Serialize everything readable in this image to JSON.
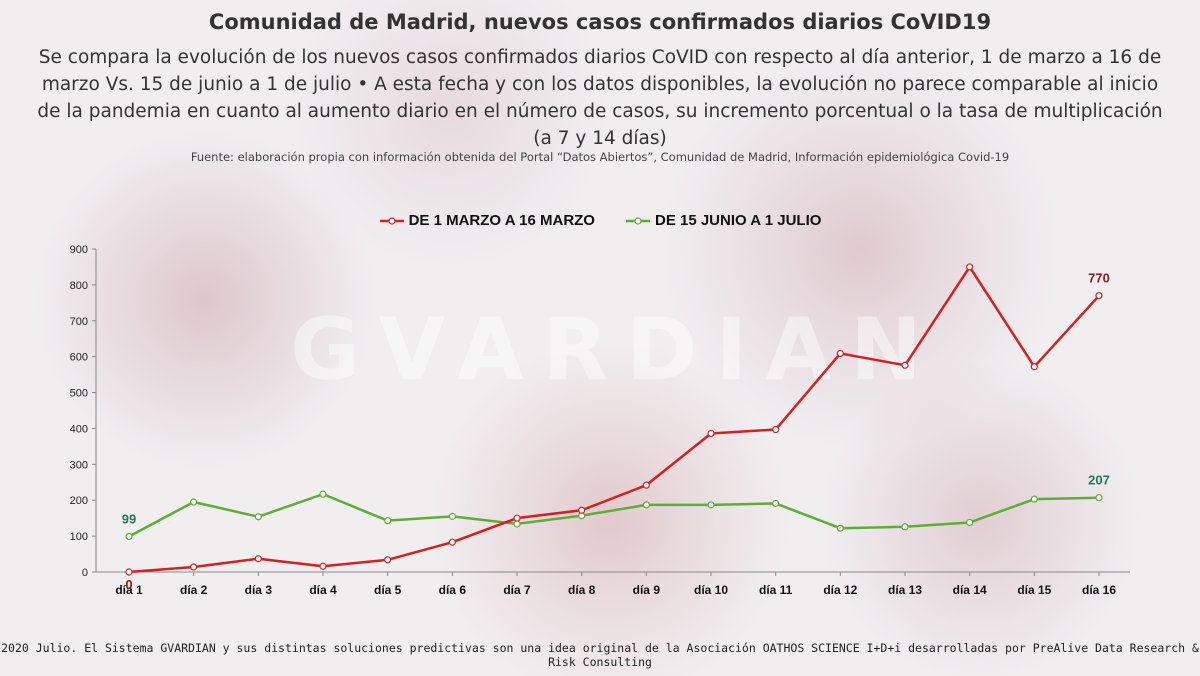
{
  "title": "Comunidad de Madrid, nuevos casos confirmados diarios CoVID19",
  "subtitle": "Se compara la evolución de los nuevos casos confirmados diarios CoVID con respecto al día anterior, 1 de marzo a 16 de marzo Vs. 15 de junio a 1 de julio • A esta fecha y con los datos disponibles, la evolución no parece comparable al inicio de la pandemia en cuanto al aumento diario en el número de casos, su incremento porcentual o la tasa de multiplicación (a 7 y 14 días)",
  "source": "Fuente: elaboración propia con información obtenida del Portal “Datos Abiertos”, Comunidad de Madrid, Información epidemiológica Covid-19",
  "watermark": "GVARDIAN",
  "footer": "2020 Julio. El Sistema GVARDIAN y sus distintas soluciones predictivas son una idea original de la Asociación OATHOS SCIENCE I+D+i desarrolladas por PreAlive Data Research & Risk Consulting",
  "colors": {
    "red_series": "#d42020",
    "green_series": "#5cae35",
    "red_label": "#8b1a1a",
    "green_label": "#1e7a5a"
  },
  "chart_data": {
    "type": "line",
    "categories": [
      "día 1",
      "día 2",
      "día 3",
      "día 4",
      "día 5",
      "día 6",
      "día 7",
      "día 8",
      "día 9",
      "día 10",
      "día 11",
      "día 12",
      "día 13",
      "día 14",
      "día 15",
      "día 16"
    ],
    "ylim": [
      0,
      900
    ],
    "yticks": [
      0,
      100,
      200,
      300,
      400,
      500,
      600,
      700,
      800,
      900
    ],
    "legend_position": "top-center",
    "grid": false,
    "series": [
      {
        "name": "DE 1 MARZO A 16 MARZO",
        "color": "#d42020",
        "values": [
          0,
          14,
          37,
          16,
          34,
          83,
          150,
          172,
          242,
          386,
          397,
          609,
          576,
          850,
          572,
          770
        ],
        "labels": [
          {
            "index": 0,
            "text": "0"
          },
          {
            "index": 15,
            "text": "770"
          }
        ]
      },
      {
        "name": "DE 15 JUNIO A 1 JULIO",
        "color": "#5cae35",
        "values": [
          99,
          195,
          154,
          217,
          143,
          155,
          134,
          157,
          187,
          187,
          191,
          122,
          126,
          138,
          203,
          207
        ],
        "labels": [
          {
            "index": 0,
            "text": "99"
          },
          {
            "index": 15,
            "text": "207"
          }
        ]
      }
    ]
  }
}
